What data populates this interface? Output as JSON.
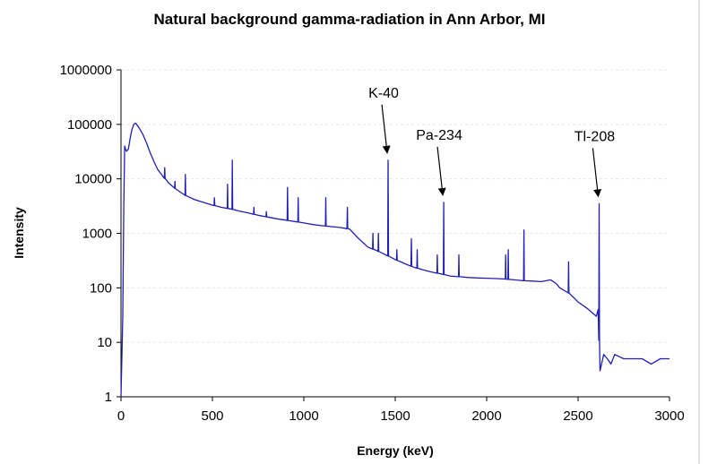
{
  "chart_data": {
    "type": "line",
    "title": "Natural background gamma-radiation in Ann Arbor, MI",
    "xlabel": "Energy (keV)",
    "ylabel": "Intensity",
    "xlim": [
      0,
      3000
    ],
    "ylim": [
      1,
      1000000
    ],
    "yscale": "log",
    "grid": "y-major dashed",
    "x_ticks": [
      0,
      500,
      1000,
      1500,
      2000,
      2500,
      3000
    ],
    "y_ticks": [
      1,
      10,
      100,
      1000,
      10000,
      100000,
      1000000
    ],
    "x_tick_labels": [
      "0",
      "500",
      "1000",
      "1500",
      "2000",
      "2500",
      "3000"
    ],
    "y_tick_labels": [
      "1",
      "10",
      "100",
      "1000",
      "10000",
      "100000",
      "1000000"
    ],
    "series": [
      {
        "color": "#1f1fb4",
        "x": [
          0,
          10,
          15,
          20,
          25,
          30,
          40,
          50,
          60,
          70,
          80,
          90,
          100,
          120,
          140,
          160,
          180,
          200,
          230,
          260,
          300,
          350,
          400,
          450,
          500,
          550,
          600,
          650,
          700,
          750,
          800,
          850,
          900,
          950,
          1000,
          1050,
          1100,
          1150,
          1200,
          1250,
          1300,
          1350,
          1400,
          1450,
          1500,
          1550,
          1600,
          1650,
          1700,
          1750,
          1800,
          1850,
          1900,
          1950,
          2000,
          2050,
          2100,
          2150,
          2200,
          2250,
          2300,
          2350,
          2380,
          2400,
          2450,
          2500,
          2550,
          2600,
          2610,
          2620,
          2640,
          2660,
          2680,
          2700,
          2750,
          2800,
          2850,
          2900,
          2950,
          3000
        ],
        "values": [
          1,
          30,
          3000,
          40000,
          35000,
          32000,
          35000,
          55000,
          80000,
          100000,
          105000,
          95000,
          85000,
          65000,
          45000,
          30000,
          21000,
          15000,
          11000,
          8500,
          6500,
          5000,
          4200,
          3700,
          3300,
          3000,
          2800,
          2550,
          2350,
          2150,
          2000,
          1850,
          1750,
          1650,
          1550,
          1450,
          1380,
          1330,
          1280,
          1200,
          800,
          560,
          480,
          400,
          330,
          280,
          240,
          215,
          195,
          180,
          165,
          160,
          155,
          152,
          150,
          148,
          145,
          140,
          135,
          133,
          130,
          140,
          120,
          100,
          80,
          55,
          42,
          30,
          40,
          3,
          6,
          5,
          4,
          6,
          5,
          5,
          5,
          4,
          5,
          5
        ]
      }
    ],
    "peaks": [
      {
        "x": 239,
        "y": 16000
      },
      {
        "x": 295,
        "y": 9000
      },
      {
        "x": 352,
        "y": 12000
      },
      {
        "x": 511,
        "y": 4500
      },
      {
        "x": 583,
        "y": 8000
      },
      {
        "x": 609,
        "y": 22000
      },
      {
        "x": 727,
        "y": 3000
      },
      {
        "x": 795,
        "y": 2500
      },
      {
        "x": 911,
        "y": 7000
      },
      {
        "x": 969,
        "y": 4500
      },
      {
        "x": 1120,
        "y": 4500
      },
      {
        "x": 1238,
        "y": 3000
      },
      {
        "x": 1378,
        "y": 1000
      },
      {
        "x": 1408,
        "y": 1000
      },
      {
        "x": 1461,
        "y": 22000
      },
      {
        "x": 1509,
        "y": 500
      },
      {
        "x": 1588,
        "y": 800
      },
      {
        "x": 1620,
        "y": 500
      },
      {
        "x": 1730,
        "y": 400
      },
      {
        "x": 1765,
        "y": 3700
      },
      {
        "x": 1848,
        "y": 400
      },
      {
        "x": 2104,
        "y": 400
      },
      {
        "x": 2118,
        "y": 500
      },
      {
        "x": 2204,
        "y": 1150
      },
      {
        "x": 2448,
        "y": 300
      },
      {
        "x": 2615,
        "y": 3500
      }
    ],
    "annotations": [
      {
        "text": "K-40",
        "x": 1461,
        "y": 22000
      },
      {
        "text": "Pa-234",
        "x": 1765,
        "y": 3700
      },
      {
        "text": "Tl-208",
        "x": 2615,
        "y": 3500
      }
    ]
  }
}
